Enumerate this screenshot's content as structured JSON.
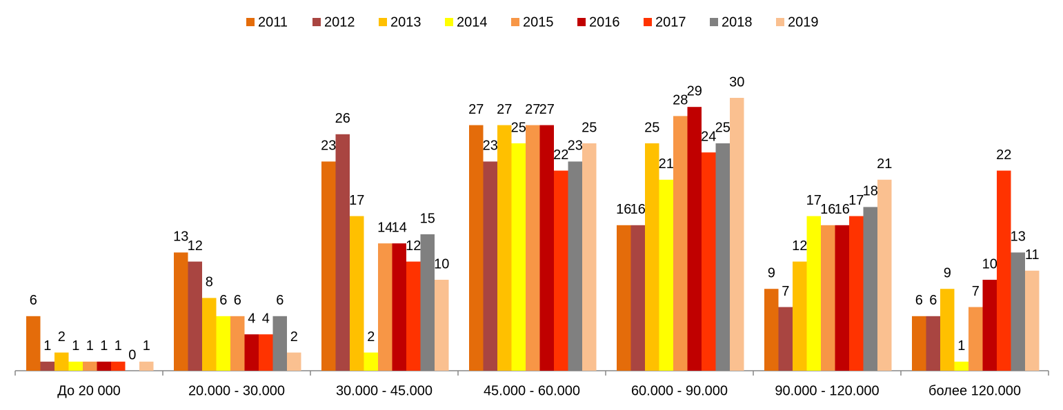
{
  "chart_data": {
    "type": "bar",
    "categories": [
      "До 20 000",
      "20.000 - 30.000",
      "30.000 - 45.000",
      "45.000 - 60.000",
      "60.000 - 90.000",
      "90.000 - 120.000",
      "более 120.000"
    ],
    "series": [
      {
        "name": "2011",
        "color": "#E46C0A",
        "values": [
          6,
          13,
          23,
          27,
          16,
          9,
          6
        ]
      },
      {
        "name": "2012",
        "color": "#A94541",
        "values": [
          1,
          12,
          26,
          23,
          16,
          7,
          6
        ]
      },
      {
        "name": "2013",
        "color": "#FFC000",
        "values": [
          2,
          8,
          17,
          27,
          25,
          12,
          9
        ]
      },
      {
        "name": "2014",
        "color": "#FFFF00",
        "values": [
          1,
          6,
          2,
          25,
          21,
          17,
          1
        ]
      },
      {
        "name": "2015",
        "color": "#F79646",
        "values": [
          1,
          6,
          14,
          27,
          28,
          16,
          7
        ]
      },
      {
        "name": "2016",
        "color": "#C00000",
        "values": [
          1,
          4,
          14,
          27,
          29,
          16,
          10
        ]
      },
      {
        "name": "2017",
        "color": "#FF3300",
        "values": [
          1,
          4,
          12,
          22,
          24,
          17,
          22
        ]
      },
      {
        "name": "2018",
        "color": "#808080",
        "values": [
          0,
          6,
          15,
          23,
          25,
          18,
          13
        ]
      },
      {
        "name": "2019",
        "color": "#FAC090",
        "values": [
          1,
          2,
          10,
          25,
          30,
          21,
          11
        ]
      }
    ],
    "legend": "top"
  }
}
